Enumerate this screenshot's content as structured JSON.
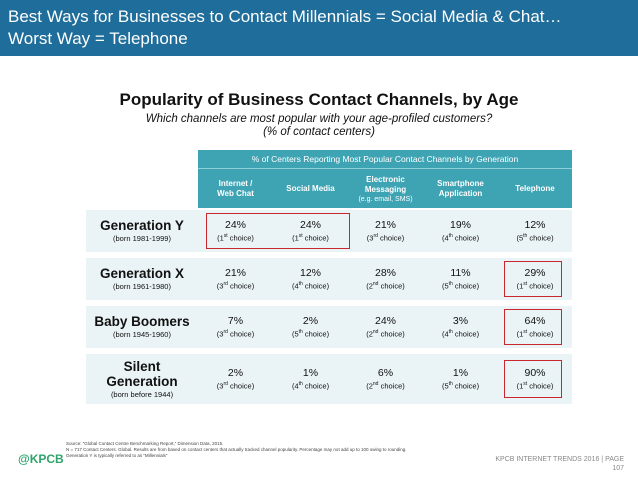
{
  "header": {
    "line1": "Best Ways for Businesses to Contact Millennials = Social Media & Chat…",
    "line2": "Worst Way = Telephone",
    "color": "#1f6d9a"
  },
  "title": "Popularity of Business Contact Channels, by Age",
  "subtitle1": "Which channels are most popular with your age-profiled customers?",
  "subtitle2": "(% of contact centers)",
  "table": {
    "group_header": "% of Centers Reporting Most Popular Contact Channels by Generation",
    "columns": [
      {
        "label1": "Internet /",
        "label2": "Web Chat",
        "sub": ""
      },
      {
        "label1": "Social Media",
        "label2": "",
        "sub": ""
      },
      {
        "label1": "Electronic",
        "label2": "Messaging",
        "sub": "(e.g. email, SMS)"
      },
      {
        "label1": "Smartphone",
        "label2": "Application",
        "sub": ""
      },
      {
        "label1": "Telephone",
        "label2": "",
        "sub": ""
      }
    ],
    "rows": [
      {
        "name": "Generation Y",
        "name2": "",
        "born": "(born 1981-1999)",
        "cells": [
          {
            "pct": "24%",
            "rank": "1",
            "sfx": "st"
          },
          {
            "pct": "24%",
            "rank": "1",
            "sfx": "st"
          },
          {
            "pct": "21%",
            "rank": "3",
            "sfx": "rd"
          },
          {
            "pct": "19%",
            "rank": "4",
            "sfx": "th"
          },
          {
            "pct": "12%",
            "rank": "5",
            "sfx": "th"
          }
        ]
      },
      {
        "name": "Generation X",
        "name2": "",
        "born": "(born 1961-1980)",
        "cells": [
          {
            "pct": "21%",
            "rank": "3",
            "sfx": "rd"
          },
          {
            "pct": "12%",
            "rank": "4",
            "sfx": "th"
          },
          {
            "pct": "28%",
            "rank": "2",
            "sfx": "nd"
          },
          {
            "pct": "11%",
            "rank": "5",
            "sfx": "th"
          },
          {
            "pct": "29%",
            "rank": "1",
            "sfx": "st"
          }
        ]
      },
      {
        "name": "Baby Boomers",
        "name2": "",
        "born": "(born 1945-1960)",
        "cells": [
          {
            "pct": "7%",
            "rank": "3",
            "sfx": "rd"
          },
          {
            "pct": "2%",
            "rank": "5",
            "sfx": "th"
          },
          {
            "pct": "24%",
            "rank": "2",
            "sfx": "nd"
          },
          {
            "pct": "3%",
            "rank": "4",
            "sfx": "th"
          },
          {
            "pct": "64%",
            "rank": "1",
            "sfx": "st"
          }
        ]
      },
      {
        "name": "Silent",
        "name2": "Generation",
        "born": "(born before 1944)",
        "cells": [
          {
            "pct": "2%",
            "rank": "3",
            "sfx": "rd"
          },
          {
            "pct": "1%",
            "rank": "4",
            "sfx": "th"
          },
          {
            "pct": "6%",
            "rank": "2",
            "sfx": "nd"
          },
          {
            "pct": "1%",
            "rank": "5",
            "sfx": "th"
          },
          {
            "pct": "90%",
            "rank": "1",
            "sfx": "st"
          }
        ]
      }
    ],
    "choice_word": "choice",
    "header_color": "#3ea3b3",
    "row_color": "#eaf4f6",
    "highlight_color": "#c8272d"
  },
  "footer": {
    "logo": "@KPCB",
    "source1": "Source: “Global Contact Centre Benchmarking Report,” Dimension Data, 2015.",
    "source2": "N = 717 Contact Centers. Global. Results are from based on contact centers that actually tracked channel popularity. Percentage may not add up to 100 owing to rounding.",
    "source3": "Generation Y is typically referred to as “Millennials”",
    "right": "KPCB INTERNET TRENDS 2016  |  PAGE",
    "page": "107"
  }
}
